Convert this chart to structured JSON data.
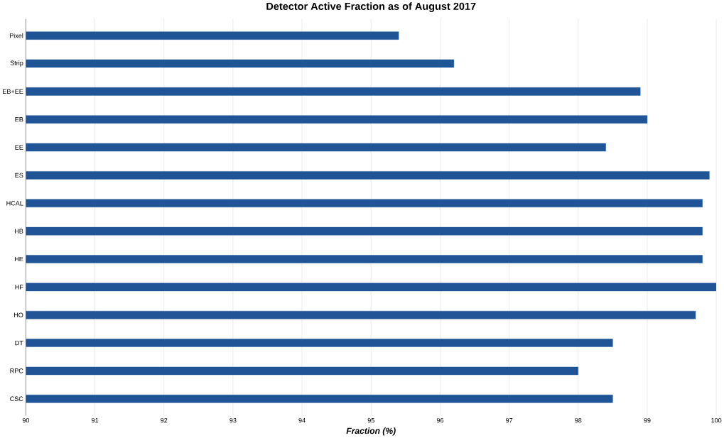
{
  "chart_data": {
    "type": "bar",
    "orientation": "horizontal",
    "title": "Detector Active Fraction as of August 2017",
    "xlabel": "Fraction (%)",
    "categories": [
      "Pixel",
      "Strip",
      "EB+EE",
      "EB",
      "EE",
      "ES",
      "HCAL",
      "HB",
      "HE",
      "HF",
      "HO",
      "DT",
      "RPC",
      "CSC"
    ],
    "values": [
      95.4,
      96.2,
      98.9,
      99.0,
      98.4,
      99.9,
      99.8,
      99.8,
      99.8,
      100.0,
      99.7,
      98.5,
      98.0,
      98.5
    ],
    "color": "#1f5596",
    "xlim": [
      90,
      100
    ],
    "xticks": [
      90,
      91,
      92,
      93,
      94,
      95,
      96,
      97,
      98,
      99,
      100
    ],
    "grid": "x"
  }
}
